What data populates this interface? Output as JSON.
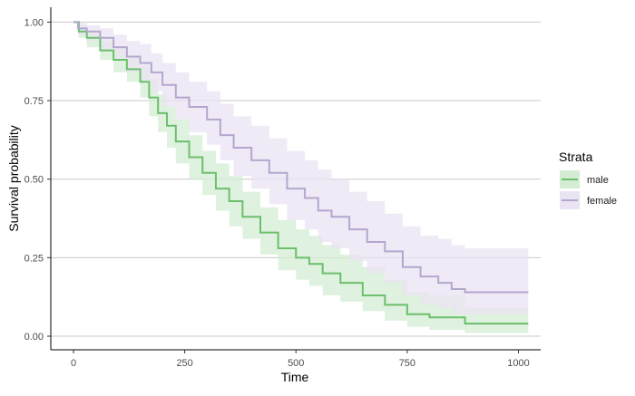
{
  "chart_data": {
    "type": "line",
    "subtype": "kaplan-meier survival curve with confidence bands",
    "xlabel": "Time",
    "ylabel": "Survival probability",
    "xlim": [
      0,
      1022
    ],
    "ylim": [
      0,
      1
    ],
    "x_ticks": [
      0,
      250,
      500,
      750,
      1000
    ],
    "x_tick_labels": [
      "0",
      "250",
      "500",
      "750",
      "1000"
    ],
    "y_ticks": [
      0,
      0.25,
      0.5,
      0.75,
      1
    ],
    "y_tick_labels": [
      "0.00",
      "0.25",
      "0.50",
      "0.75",
      "1.00"
    ],
    "grid": "horizontal major gridlines",
    "legend": {
      "title": "Strata",
      "position": "right"
    },
    "series": [
      {
        "name": "male",
        "color": "#6cbf6c",
        "band_color": "#d4ecd4",
        "points": [
          [
            0,
            1.0
          ],
          [
            12,
            0.97
          ],
          [
            30,
            0.95
          ],
          [
            60,
            0.91
          ],
          [
            90,
            0.88
          ],
          [
            120,
            0.85
          ],
          [
            150,
            0.81
          ],
          [
            170,
            0.76
          ],
          [
            190,
            0.71
          ],
          [
            210,
            0.67
          ],
          [
            230,
            0.62
          ],
          [
            260,
            0.57
          ],
          [
            290,
            0.52
          ],
          [
            320,
            0.47
          ],
          [
            350,
            0.43
          ],
          [
            380,
            0.38
          ],
          [
            420,
            0.33
          ],
          [
            460,
            0.28
          ],
          [
            500,
            0.25
          ],
          [
            530,
            0.23
          ],
          [
            560,
            0.2
          ],
          [
            600,
            0.17
          ],
          [
            650,
            0.13
          ],
          [
            700,
            0.1
          ],
          [
            750,
            0.07
          ],
          [
            800,
            0.06
          ],
          [
            880,
            0.04
          ],
          [
            1022,
            0.04
          ]
        ],
        "upper": [
          [
            0,
            1.0
          ],
          [
            12,
            0.99
          ],
          [
            30,
            0.97
          ],
          [
            60,
            0.94
          ],
          [
            90,
            0.92
          ],
          [
            120,
            0.89
          ],
          [
            150,
            0.86
          ],
          [
            170,
            0.82
          ],
          [
            190,
            0.77
          ],
          [
            210,
            0.73
          ],
          [
            230,
            0.69
          ],
          [
            260,
            0.64
          ],
          [
            290,
            0.59
          ],
          [
            320,
            0.55
          ],
          [
            350,
            0.51
          ],
          [
            380,
            0.46
          ],
          [
            420,
            0.41
          ],
          [
            460,
            0.37
          ],
          [
            500,
            0.34
          ],
          [
            530,
            0.32
          ],
          [
            560,
            0.29
          ],
          [
            600,
            0.26
          ],
          [
            650,
            0.22
          ],
          [
            700,
            0.18
          ],
          [
            750,
            0.14
          ],
          [
            800,
            0.13
          ],
          [
            880,
            0.09
          ],
          [
            1022,
            0.09
          ]
        ],
        "lower": [
          [
            0,
            1.0
          ],
          [
            12,
            0.95
          ],
          [
            30,
            0.92
          ],
          [
            60,
            0.88
          ],
          [
            90,
            0.84
          ],
          [
            120,
            0.81
          ],
          [
            150,
            0.76
          ],
          [
            170,
            0.7
          ],
          [
            190,
            0.65
          ],
          [
            210,
            0.6
          ],
          [
            230,
            0.55
          ],
          [
            260,
            0.5
          ],
          [
            290,
            0.45
          ],
          [
            320,
            0.4
          ],
          [
            350,
            0.35
          ],
          [
            380,
            0.31
          ],
          [
            420,
            0.26
          ],
          [
            460,
            0.21
          ],
          [
            500,
            0.18
          ],
          [
            530,
            0.16
          ],
          [
            560,
            0.13
          ],
          [
            600,
            0.11
          ],
          [
            650,
            0.08
          ],
          [
            700,
            0.05
          ],
          [
            750,
            0.03
          ],
          [
            800,
            0.02
          ],
          [
            880,
            0.01
          ],
          [
            1022,
            0.01
          ]
        ]
      },
      {
        "name": "female",
        "color": "#b3a7cf",
        "band_color": "#e9e3f2",
        "points": [
          [
            0,
            1.0
          ],
          [
            10,
            0.98
          ],
          [
            30,
            0.97
          ],
          [
            60,
            0.95
          ],
          [
            90,
            0.92
          ],
          [
            120,
            0.89
          ],
          [
            150,
            0.87
          ],
          [
            175,
            0.84
          ],
          [
            200,
            0.8
          ],
          [
            230,
            0.76
          ],
          [
            260,
            0.73
          ],
          [
            300,
            0.69
          ],
          [
            330,
            0.64
          ],
          [
            360,
            0.6
          ],
          [
            400,
            0.56
          ],
          [
            440,
            0.52
          ],
          [
            480,
            0.47
          ],
          [
            520,
            0.44
          ],
          [
            550,
            0.4
          ],
          [
            580,
            0.38
          ],
          [
            620,
            0.34
          ],
          [
            660,
            0.3
          ],
          [
            700,
            0.27
          ],
          [
            740,
            0.22
          ],
          [
            780,
            0.19
          ],
          [
            820,
            0.17
          ],
          [
            850,
            0.15
          ],
          [
            880,
            0.14
          ],
          [
            1022,
            0.14
          ]
        ],
        "upper": [
          [
            0,
            1.0
          ],
          [
            10,
            1.0
          ],
          [
            30,
            0.99
          ],
          [
            60,
            0.98
          ],
          [
            90,
            0.96
          ],
          [
            120,
            0.94
          ],
          [
            150,
            0.93
          ],
          [
            175,
            0.9
          ],
          [
            200,
            0.87
          ],
          [
            230,
            0.84
          ],
          [
            260,
            0.81
          ],
          [
            300,
            0.78
          ],
          [
            330,
            0.74
          ],
          [
            360,
            0.7
          ],
          [
            400,
            0.67
          ],
          [
            440,
            0.63
          ],
          [
            480,
            0.59
          ],
          [
            520,
            0.56
          ],
          [
            550,
            0.53
          ],
          [
            580,
            0.5
          ],
          [
            620,
            0.46
          ],
          [
            660,
            0.43
          ],
          [
            700,
            0.39
          ],
          [
            740,
            0.35
          ],
          [
            780,
            0.32
          ],
          [
            820,
            0.31
          ],
          [
            850,
            0.29
          ],
          [
            880,
            0.28
          ],
          [
            1022,
            0.28
          ]
        ],
        "lower": [
          [
            0,
            1.0
          ],
          [
            10,
            0.96
          ],
          [
            30,
            0.94
          ],
          [
            60,
            0.91
          ],
          [
            90,
            0.88
          ],
          [
            120,
            0.84
          ],
          [
            150,
            0.81
          ],
          [
            175,
            0.78
          ],
          [
            200,
            0.73
          ],
          [
            230,
            0.69
          ],
          [
            260,
            0.65
          ],
          [
            300,
            0.61
          ],
          [
            330,
            0.56
          ],
          [
            360,
            0.51
          ],
          [
            400,
            0.47
          ],
          [
            440,
            0.42
          ],
          [
            480,
            0.37
          ],
          [
            520,
            0.34
          ],
          [
            550,
            0.3
          ],
          [
            580,
            0.28
          ],
          [
            620,
            0.24
          ],
          [
            660,
            0.2
          ],
          [
            700,
            0.17
          ],
          [
            740,
            0.13
          ],
          [
            780,
            0.1
          ],
          [
            820,
            0.09
          ],
          [
            850,
            0.07
          ],
          [
            880,
            0.07
          ],
          [
            1022,
            0.07
          ]
        ]
      }
    ]
  }
}
